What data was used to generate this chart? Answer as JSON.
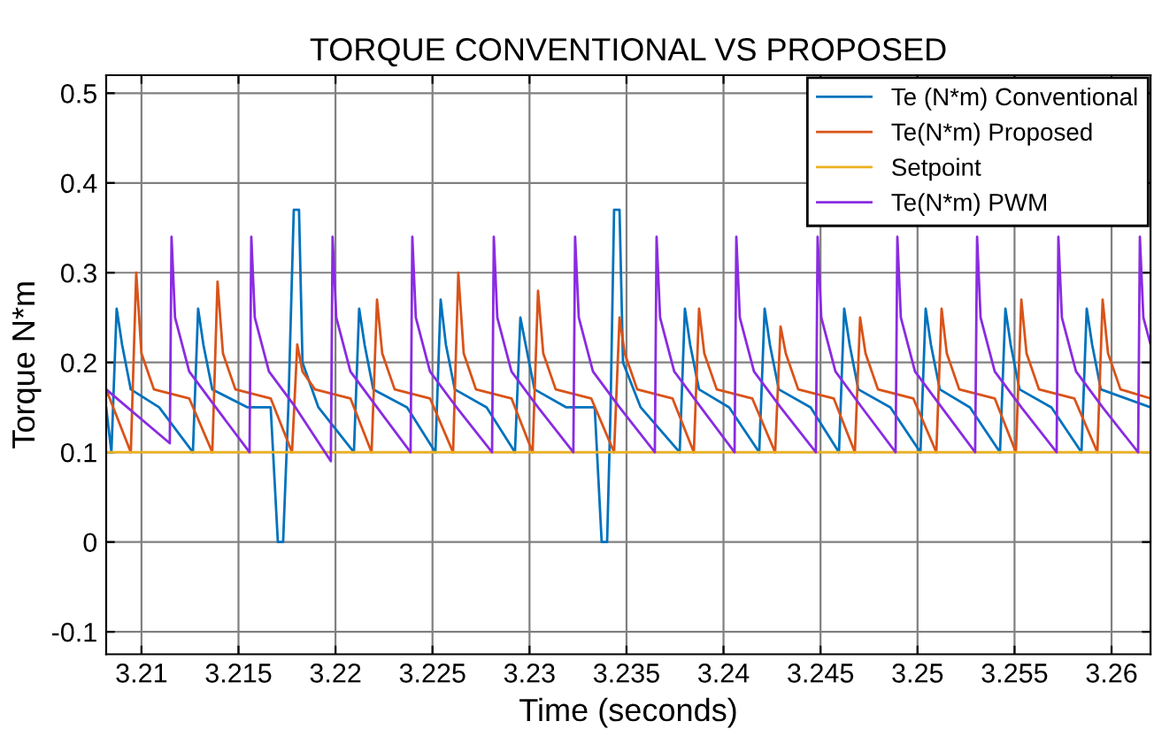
{
  "chart_data": {
    "type": "line",
    "title": "TORQUE CONVENTIONAL VS PROPOSED",
    "xlabel": "Time (seconds)",
    "ylabel": "Torque N*m",
    "xlim": [
      3.20818,
      3.26201
    ],
    "ylim": [
      -0.125,
      0.52
    ],
    "xticks": [
      3.21,
      3.215,
      3.22,
      3.225,
      3.23,
      3.235,
      3.24,
      3.245,
      3.25,
      3.255,
      3.26
    ],
    "yticks": [
      -0.1,
      0,
      0.1,
      0.2,
      0.3,
      0.4,
      0.5
    ],
    "grid": true,
    "legend": "top right",
    "line_style": "solid",
    "series": [
      {
        "name": "Te (N*m) Conventional",
        "color": "#0072bd",
        "x": [
          3.20818,
          3.20845,
          3.20872,
          3.209,
          3.20945,
          3.21091,
          3.21265,
          3.21292,
          3.21319,
          3.21365,
          3.21547,
          3.21666,
          3.21703,
          3.2173,
          3.21757,
          3.21785,
          3.21812,
          3.2183,
          3.21912,
          3.22095,
          3.22122,
          3.2215,
          3.22195,
          3.22369,
          3.22515,
          3.22542,
          3.22569,
          3.22615,
          3.22779,
          3.22925,
          3.22953,
          3.2298,
          3.23026,
          3.2319,
          3.23336,
          3.23372,
          3.234,
          3.23418,
          3.23436,
          3.23464,
          3.23482,
          3.23573,
          3.23774,
          3.23801,
          3.23828,
          3.23874,
          3.24029,
          3.24184,
          3.24212,
          3.24239,
          3.24285,
          3.24449,
          3.24595,
          3.24622,
          3.2465,
          3.24695,
          3.2486,
          3.25015,
          3.25042,
          3.25069,
          3.25115,
          3.2527,
          3.25425,
          3.25453,
          3.2548,
          3.25526,
          3.2569,
          3.25845,
          3.25872,
          3.259,
          3.25945,
          3.26201
        ],
        "values": [
          0.15,
          0.1,
          0.26,
          0.22,
          0.17,
          0.15,
          0.1,
          0.26,
          0.22,
          0.17,
          0.15,
          0.15,
          0.0,
          0.0,
          0.15,
          0.37,
          0.37,
          0.2,
          0.15,
          0.1,
          0.26,
          0.22,
          0.17,
          0.15,
          0.1,
          0.27,
          0.22,
          0.17,
          0.15,
          0.1,
          0.25,
          0.22,
          0.17,
          0.15,
          0.15,
          0.0,
          0.0,
          0.15,
          0.37,
          0.37,
          0.2,
          0.15,
          0.1,
          0.26,
          0.22,
          0.17,
          0.15,
          0.1,
          0.26,
          0.22,
          0.17,
          0.15,
          0.1,
          0.26,
          0.22,
          0.17,
          0.15,
          0.1,
          0.26,
          0.22,
          0.17,
          0.15,
          0.1,
          0.26,
          0.22,
          0.17,
          0.15,
          0.1,
          0.26,
          0.22,
          0.17,
          0.15
        ]
      },
      {
        "name": "Te(N*m) Proposed",
        "color": "#d95319",
        "x": [
          3.20818,
          3.20945,
          3.20973,
          3.21,
          3.21064,
          3.21246,
          3.21365,
          3.21392,
          3.2142,
          3.21484,
          3.21666,
          3.21776,
          3.21803,
          3.2183,
          3.21894,
          3.22077,
          3.22186,
          3.22214,
          3.22241,
          3.22305,
          3.22487,
          3.22606,
          3.22633,
          3.22661,
          3.22724,
          3.22907,
          3.23016,
          3.23044,
          3.23071,
          3.23135,
          3.23318,
          3.23436,
          3.23464,
          3.23491,
          3.23555,
          3.23737,
          3.23847,
          3.23874,
          3.23901,
          3.23965,
          3.24148,
          3.24266,
          3.24294,
          3.24321,
          3.24385,
          3.24568,
          3.24677,
          3.24704,
          3.24732,
          3.24796,
          3.24978,
          3.25097,
          3.25124,
          3.25151,
          3.25215,
          3.25398,
          3.25507,
          3.25535,
          3.25562,
          3.25626,
          3.25808,
          3.25927,
          3.25954,
          3.25982,
          3.26046,
          3.26201
        ],
        "values": [
          0.17,
          0.1,
          0.3,
          0.21,
          0.17,
          0.16,
          0.1,
          0.29,
          0.21,
          0.17,
          0.16,
          0.1,
          0.22,
          0.19,
          0.17,
          0.16,
          0.1,
          0.27,
          0.21,
          0.17,
          0.16,
          0.1,
          0.3,
          0.21,
          0.17,
          0.16,
          0.1,
          0.28,
          0.21,
          0.17,
          0.16,
          0.1,
          0.25,
          0.21,
          0.17,
          0.16,
          0.1,
          0.26,
          0.21,
          0.17,
          0.16,
          0.1,
          0.24,
          0.21,
          0.17,
          0.16,
          0.1,
          0.25,
          0.21,
          0.17,
          0.16,
          0.1,
          0.26,
          0.21,
          0.17,
          0.16,
          0.1,
          0.27,
          0.21,
          0.17,
          0.16,
          0.1,
          0.27,
          0.21,
          0.17,
          0.16
        ]
      },
      {
        "name": "Setpoint",
        "color": "#edb120",
        "x": [
          3.20818,
          3.26201
        ],
        "values": [
          0.1,
          0.1
        ]
      },
      {
        "name": "Te(N*m) PWM",
        "color": "#8a2be2",
        "x": [
          3.20818,
          3.21146,
          3.21155,
          3.21173,
          3.21246,
          3.21383,
          3.21557,
          3.21566,
          3.21584,
          3.21657,
          3.21794,
          3.21976,
          3.21985,
          3.22004,
          3.22077,
          3.22214,
          3.22387,
          3.22396,
          3.22414,
          3.22487,
          3.22624,
          3.22807,
          3.22816,
          3.22834,
          3.22907,
          3.23044,
          3.23226,
          3.23235,
          3.23254,
          3.23327,
          3.23464,
          3.23646,
          3.23655,
          3.23673,
          3.23746,
          3.23883,
          3.24057,
          3.24066,
          3.24084,
          3.24157,
          3.24294,
          3.24476,
          3.24485,
          3.24504,
          3.24577,
          3.24713,
          3.24887,
          3.24896,
          3.24914,
          3.24987,
          3.25124,
          3.25297,
          3.25307,
          3.25325,
          3.25398,
          3.25535,
          3.25717,
          3.25726,
          3.25744,
          3.25817,
          3.25954,
          3.26137,
          3.26146,
          3.26164,
          3.26201
        ],
        "values": [
          0.17,
          0.11,
          0.34,
          0.25,
          0.19,
          0.15,
          0.1,
          0.34,
          0.25,
          0.19,
          0.15,
          0.09,
          0.34,
          0.25,
          0.19,
          0.15,
          0.1,
          0.34,
          0.25,
          0.19,
          0.15,
          0.1,
          0.34,
          0.25,
          0.19,
          0.15,
          0.1,
          0.34,
          0.25,
          0.19,
          0.15,
          0.1,
          0.34,
          0.25,
          0.19,
          0.15,
          0.1,
          0.34,
          0.25,
          0.19,
          0.15,
          0.1,
          0.34,
          0.25,
          0.19,
          0.15,
          0.1,
          0.34,
          0.25,
          0.19,
          0.15,
          0.1,
          0.34,
          0.25,
          0.19,
          0.15,
          0.1,
          0.34,
          0.25,
          0.19,
          0.15,
          0.1,
          0.34,
          0.25,
          0.22
        ]
      }
    ]
  }
}
